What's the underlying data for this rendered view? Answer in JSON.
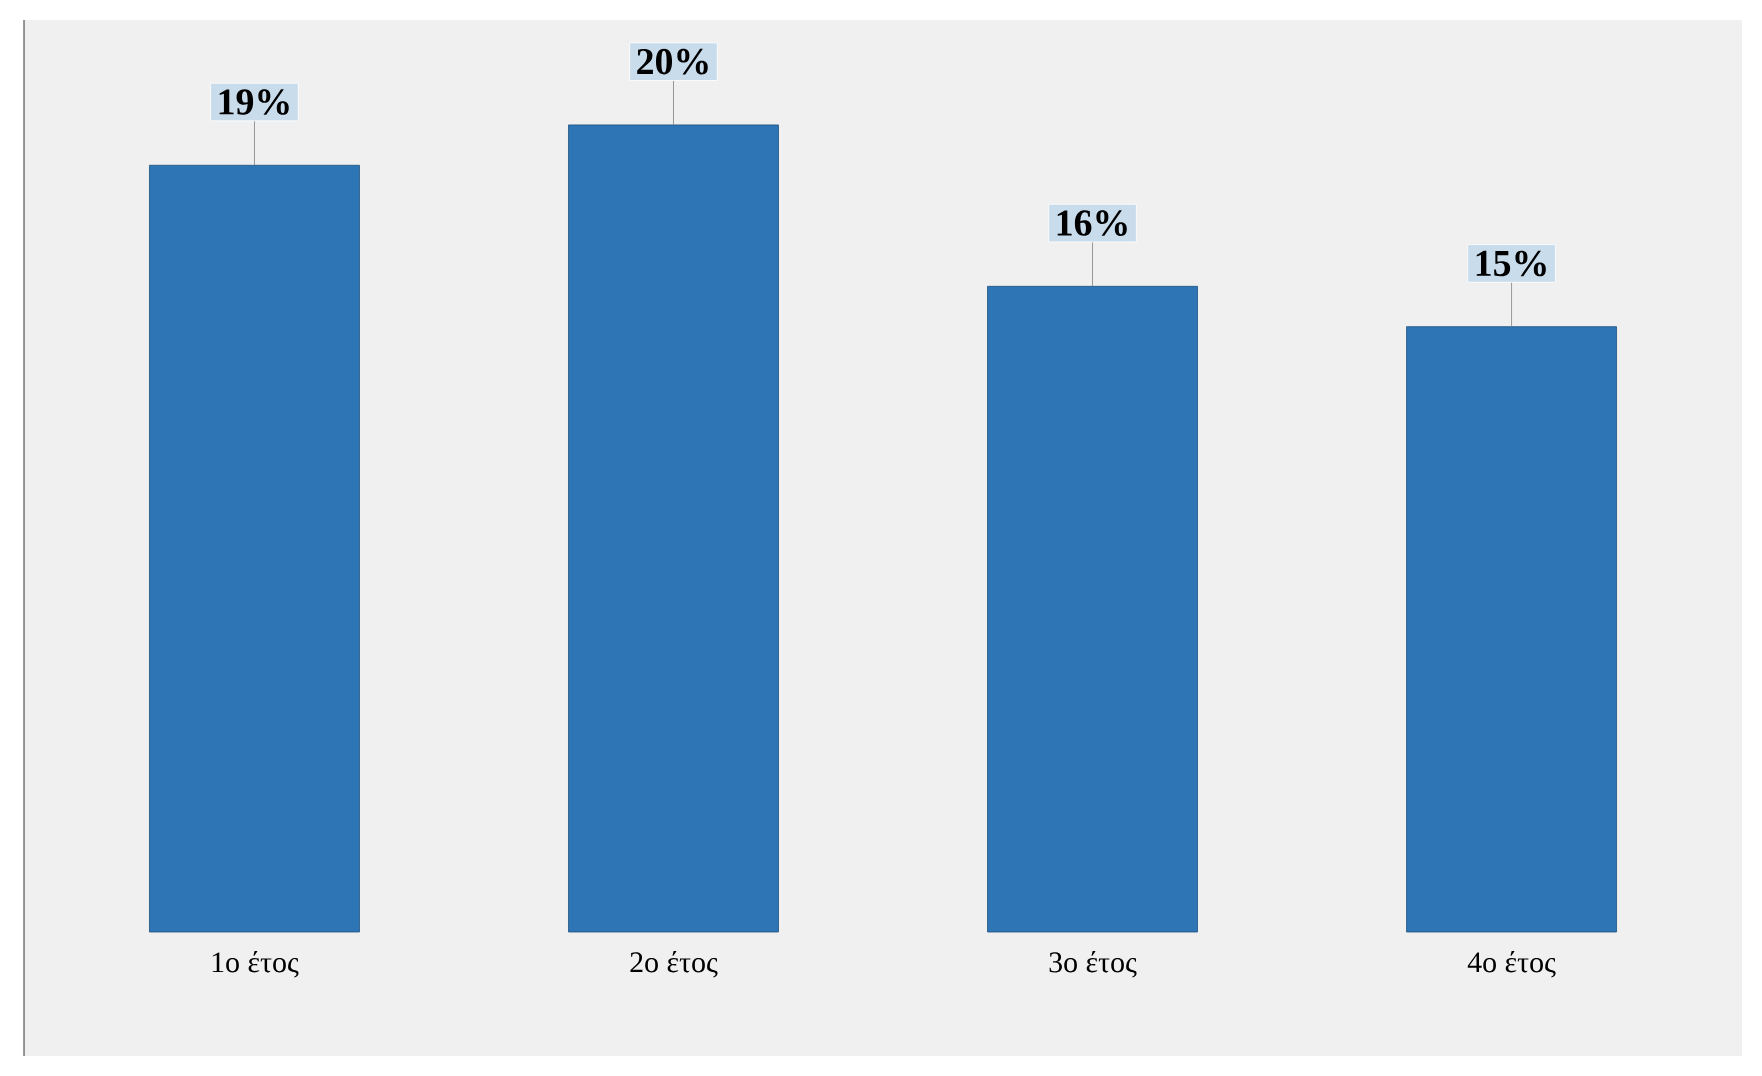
{
  "chart_data": {
    "type": "bar",
    "categories": [
      "1ο έτος",
      "2ο έτος",
      "3ο έτος",
      "4ο έτος"
    ],
    "values": [
      19,
      20,
      16,
      15
    ],
    "value_labels": [
      "19%",
      "20%",
      "16%",
      "15%"
    ],
    "color": "#2e75b6"
  }
}
